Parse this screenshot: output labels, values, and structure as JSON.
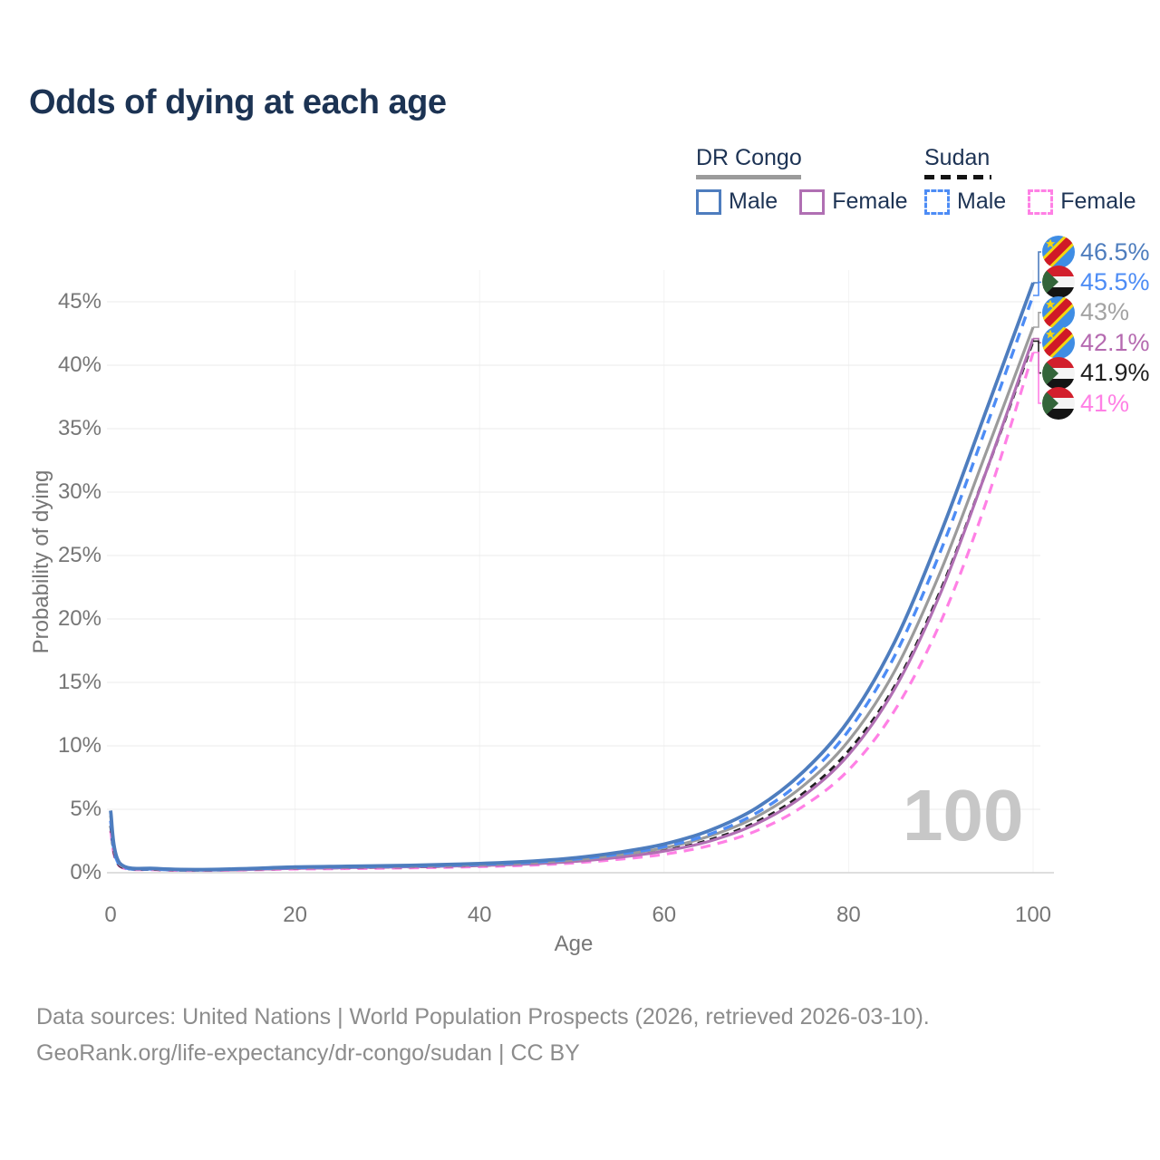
{
  "header": {
    "title": "Odds of dying at each age"
  },
  "legend": {
    "groups": [
      {
        "label": "DR Congo",
        "line_style": "solid",
        "underline_color": "#9b9b9b",
        "items": [
          {
            "label": "Male",
            "color": "#4e7dbe",
            "dashed": false
          },
          {
            "label": "Female",
            "color": "#b06fb3",
            "dashed": false
          }
        ]
      },
      {
        "label": "Sudan",
        "line_style": "dashed",
        "underline_color": "#141414",
        "items": [
          {
            "label": "Male",
            "color": "#4d8cf5",
            "dashed": true
          },
          {
            "label": "Female",
            "color": "#ff80e5",
            "dashed": true
          }
        ]
      }
    ]
  },
  "axes": {
    "y": {
      "title": "Probability of dying",
      "tick_labels": [
        "0%",
        "5%",
        "10%",
        "15%",
        "20%",
        "25%",
        "30%",
        "35%",
        "40%",
        "45%"
      ],
      "tick_values": [
        0,
        5,
        10,
        15,
        20,
        25,
        30,
        35,
        40,
        45
      ]
    },
    "x": {
      "title": "Age",
      "tick_labels": [
        "0",
        "20",
        "40",
        "60",
        "80",
        "100"
      ],
      "tick_values": [
        0,
        20,
        40,
        60,
        80,
        100
      ]
    }
  },
  "watermark": "100",
  "end_labels": [
    {
      "series_key": "drc_male",
      "text": "46.5%",
      "value": 46.5,
      "color": "#4e7dbe",
      "flag": "dr-congo"
    },
    {
      "series_key": "sudan_male",
      "text": "45.5%",
      "value": 45.5,
      "color": "#4d8cf5",
      "flag": "sudan"
    },
    {
      "series_key": "drc_both",
      "text": "43%",
      "value": 43.0,
      "color": "#a3a3a3",
      "flag": "dr-congo"
    },
    {
      "series_key": "drc_female",
      "text": "42.1%",
      "value": 42.1,
      "color": "#b56ab0",
      "flag": "dr-congo"
    },
    {
      "series_key": "sudan_both",
      "text": "41.9%",
      "value": 41.9,
      "color": "#1f1f1f",
      "flag": "sudan"
    },
    {
      "series_key": "sudan_female",
      "text": "41%",
      "value": 41.0,
      "color": "#ff80e5",
      "flag": "sudan"
    }
  ],
  "footer": {
    "line1": "Data sources: United Nations | World Population Prospects (2026, retrieved 2026-03-10).",
    "line2": "GeoRank.org/life-expectancy/dr-congo/sudan | CC BY"
  },
  "chart_data": {
    "type": "line",
    "title": "Odds of dying at each age",
    "xlabel": "Age",
    "ylabel": "Probability of dying",
    "x": [
      0,
      1,
      5,
      10,
      15,
      20,
      25,
      30,
      35,
      40,
      45,
      50,
      55,
      60,
      65,
      70,
      75,
      80,
      85,
      90,
      95,
      100
    ],
    "xlim": [
      0,
      100
    ],
    "ylim": [
      0,
      47
    ],
    "grid": "horizontal-major",
    "legend_position": "top-right",
    "y_unit": "percent",
    "series": [
      {
        "key": "sudan_female",
        "name": "Sudan Female",
        "country": "Sudan",
        "sex": "Female",
        "color": "#ff80e5",
        "dash": "11 8",
        "width": 3.2,
        "values": [
          3.3,
          0.5,
          0.23,
          0.18,
          0.22,
          0.29,
          0.32,
          0.36,
          0.41,
          0.48,
          0.58,
          0.76,
          1.05,
          1.45,
          2.15,
          3.3,
          5.2,
          8.1,
          12.8,
          19.8,
          29.4,
          41.0
        ]
      },
      {
        "key": "sudan_both",
        "name": "Sudan Both sexes",
        "country": "Sudan",
        "sex": "Both",
        "color": "#1f1f1f",
        "dash": "8 6",
        "width": 3.2,
        "values": [
          3.7,
          0.55,
          0.26,
          0.2,
          0.26,
          0.35,
          0.39,
          0.44,
          0.49,
          0.57,
          0.69,
          0.9,
          1.25,
          1.75,
          2.6,
          4.0,
          6.2,
          9.6,
          14.7,
          22.3,
          31.8,
          41.9
        ]
      },
      {
        "key": "drc_female",
        "name": "DR Congo Female",
        "country": "DR Congo",
        "sex": "Female",
        "color": "#b06fb3",
        "dash": null,
        "width": 3.2,
        "values": [
          4.1,
          0.62,
          0.28,
          0.21,
          0.26,
          0.34,
          0.39,
          0.44,
          0.5,
          0.57,
          0.68,
          0.87,
          1.2,
          1.7,
          2.5,
          3.85,
          6.0,
          9.3,
          14.5,
          22.1,
          31.8,
          42.1
        ]
      },
      {
        "key": "drc_both",
        "name": "DR Congo Both sexes",
        "country": "DR Congo",
        "sex": "Both",
        "color": "#9b9b9b",
        "dash": null,
        "width": 3.2,
        "values": [
          4.5,
          0.68,
          0.3,
          0.23,
          0.3,
          0.4,
          0.45,
          0.5,
          0.56,
          0.64,
          0.78,
          1.0,
          1.4,
          1.95,
          2.9,
          4.4,
          6.8,
          10.4,
          15.9,
          23.8,
          33.3,
          43.0
        ]
      },
      {
        "key": "sudan_male",
        "name": "Sudan Male",
        "country": "Sudan",
        "sex": "Male",
        "color": "#4d8cf5",
        "dash": "11 8",
        "width": 3.4,
        "values": [
          4.1,
          0.6,
          0.28,
          0.22,
          0.3,
          0.4,
          0.45,
          0.5,
          0.56,
          0.66,
          0.8,
          1.05,
          1.45,
          2.05,
          3.05,
          4.7,
          7.3,
          11.2,
          17.1,
          25.4,
          35.3,
          45.5
        ]
      },
      {
        "key": "drc_male",
        "name": "DR Congo Male",
        "country": "DR Congo",
        "sex": "Male",
        "color": "#4e7dbe",
        "dash": null,
        "width": 3.8,
        "values": [
          4.9,
          0.75,
          0.33,
          0.25,
          0.33,
          0.45,
          0.5,
          0.55,
          0.62,
          0.72,
          0.88,
          1.15,
          1.6,
          2.25,
          3.35,
          5.1,
          7.9,
          12.0,
          18.2,
          26.8,
          36.6,
          46.5
        ]
      }
    ]
  }
}
